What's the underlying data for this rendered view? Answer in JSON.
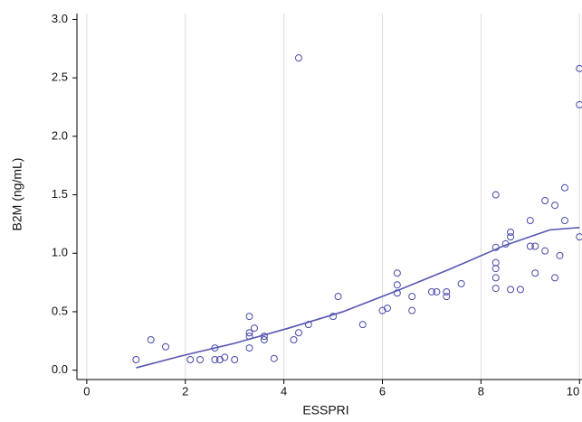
{
  "chart_data": {
    "type": "scatter",
    "xlabel": "ESSPRI",
    "ylabel": "B2M (ng/mL)",
    "xlim": [
      -0.2,
      10.05
    ],
    "ylim": [
      -0.08,
      3.05
    ],
    "xticks": [
      0,
      2,
      4,
      6,
      8,
      10
    ],
    "yticks": [
      {
        "value": 0,
        "label": "0.0"
      },
      {
        "value": 0.5,
        "label": "0.5"
      },
      {
        "value": 1,
        "label": "1.0"
      },
      {
        "value": 1.5,
        "label": "1.5"
      },
      {
        "value": 2,
        "label": "2.0"
      },
      {
        "value": 2.5,
        "label": "2.5"
      },
      {
        "value": 3,
        "label": "3.0"
      }
    ],
    "grid": "x",
    "series": [
      {
        "color": "#4848a8",
        "x": [
          1.0,
          1.3,
          1.6,
          2.1,
          2.3,
          2.6,
          2.6,
          2.7,
          2.8,
          3.0,
          3.3,
          3.3,
          3.3,
          3.3,
          3.4,
          3.6,
          3.6,
          3.8,
          4.2,
          4.3,
          4.3,
          4.5,
          5.0,
          5.1,
          5.6,
          6.0,
          6.1,
          6.3,
          6.3,
          6.3,
          6.6,
          6.6,
          7.0,
          7.1,
          7.3,
          7.3,
          7.6,
          8.3,
          8.3,
          8.3,
          8.3,
          8.3,
          8.3,
          8.5,
          8.6,
          8.6,
          8.6,
          8.8,
          9.0,
          9.0,
          9.1,
          9.1,
          9.3,
          9.3,
          9.5,
          9.5,
          9.6,
          9.7,
          9.7,
          10.0,
          10.0,
          10.0
        ],
        "values": [
          0.09,
          0.26,
          0.2,
          0.09,
          0.09,
          0.19,
          0.09,
          0.09,
          0.11,
          0.09,
          0.46,
          0.32,
          0.29,
          0.19,
          0.36,
          0.29,
          0.26,
          0.1,
          0.26,
          2.67,
          0.32,
          0.39,
          0.46,
          0.63,
          0.39,
          0.51,
          0.53,
          0.83,
          0.73,
          0.66,
          0.63,
          0.51,
          0.67,
          0.67,
          0.67,
          0.63,
          0.74,
          1.5,
          1.05,
          0.92,
          0.87,
          0.79,
          0.7,
          1.08,
          1.18,
          1.14,
          0.69,
          0.69,
          1.28,
          1.06,
          1.06,
          0.83,
          1.45,
          1.02,
          1.41,
          0.79,
          0.98,
          1.56,
          1.28,
          2.58,
          2.27,
          1.14
        ]
      },
      {
        "type": "line",
        "color": "#5656b4",
        "x": [
          1.0,
          1.9,
          3.0,
          4.1,
          5.2,
          6.3,
          7.4,
          8.5,
          9.4,
          10.0
        ],
        "values": [
          0.02,
          0.12,
          0.23,
          0.36,
          0.5,
          0.68,
          0.87,
          1.07,
          1.2,
          1.22
        ]
      }
    ]
  }
}
